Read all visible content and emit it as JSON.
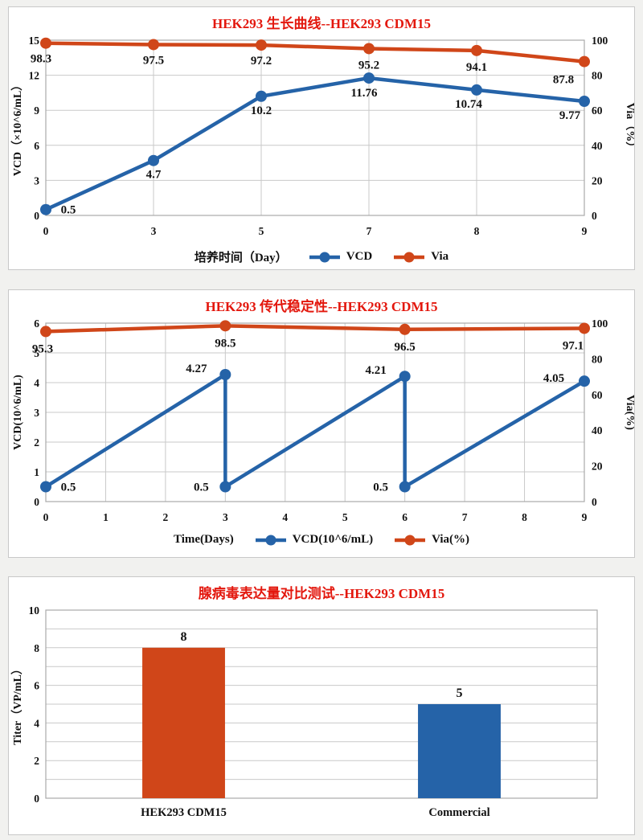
{
  "page": {
    "background": "#f1f1ef"
  },
  "colors": {
    "blue": "#2563a8",
    "orange": "#d04619",
    "title_red": "#e3170d",
    "grid": "#c9c9c9",
    "plot_border": "#a9a9a9",
    "text": "#111111",
    "panel_bg": "#ffffff"
  },
  "chart_data": [
    {
      "id": "growth-curve",
      "type": "line",
      "title": "HEK293 生长曲线--HEK293 CDM15",
      "x_mode": "category",
      "x_categories": [
        "0",
        "3",
        "5",
        "7",
        "8",
        "9"
      ],
      "xlabel": "培养时间（Day）",
      "left_axis": {
        "label": "VCD（×10^6/mL）",
        "min": 0,
        "max": 15,
        "ticks": [
          "0",
          "3",
          "6",
          "9",
          "12",
          "15"
        ]
      },
      "right_axis": {
        "label": "Via（%）",
        "min": 0,
        "max": 100,
        "ticks": [
          "0",
          "20",
          "40",
          "60",
          "80",
          "100"
        ]
      },
      "grid": true,
      "legend_position": "bottom",
      "series": [
        {
          "name": "VCD",
          "axis": "left",
          "color": "blue",
          "points": [
            {
              "x": 0,
              "y": 0.5,
              "label": "0.5",
              "dx": 28,
              "dy": 5
            },
            {
              "x": 1,
              "y": 4.7,
              "label": "4.7",
              "dx": 0,
              "dy": 22
            },
            {
              "x": 2,
              "y": 10.2,
              "label": "10.2",
              "dx": 0,
              "dy": 22
            },
            {
              "x": 3,
              "y": 11.76,
              "label": "11.76",
              "dx": -6,
              "dy": 23
            },
            {
              "x": 4,
              "y": 10.74,
              "label": "10.74",
              "dx": -10,
              "dy": 22
            },
            {
              "x": 5,
              "y": 9.77,
              "label": "9.77",
              "dx": -18,
              "dy": 22
            }
          ]
        },
        {
          "name": "Via",
          "axis": "right",
          "color": "orange",
          "points": [
            {
              "x": 0,
              "y": 98.3,
              "label": "98.3",
              "dx": -6,
              "dy": 24
            },
            {
              "x": 1,
              "y": 97.5,
              "label": "97.5",
              "dx": 0,
              "dy": 24
            },
            {
              "x": 2,
              "y": 97.2,
              "label": "97.2",
              "dx": 0,
              "dy": 24
            },
            {
              "x": 3,
              "y": 95.2,
              "label": "95.2",
              "dx": 0,
              "dy": 25
            },
            {
              "x": 4,
              "y": 94.1,
              "label": "94.1",
              "dx": 0,
              "dy": 25
            },
            {
              "x": 5,
              "y": 87.8,
              "label": "87.8",
              "dx": -26,
              "dy": 27
            }
          ]
        }
      ]
    },
    {
      "id": "passage-stability",
      "type": "line",
      "title": "HEK293 传代稳定性--HEK293 CDM15",
      "x_mode": "linear",
      "x_min": 0,
      "x_max": 9,
      "x_ticks": [
        "0",
        "1",
        "2",
        "3",
        "4",
        "5",
        "6",
        "7",
        "8",
        "9"
      ],
      "xlabel": "Time(Days)",
      "left_axis": {
        "label": "VCD(10^6/mL)",
        "min": 0,
        "max": 6,
        "ticks": [
          "0",
          "1",
          "2",
          "3",
          "4",
          "5",
          "6"
        ]
      },
      "right_axis": {
        "label": "Via(%)",
        "min": 0,
        "max": 100,
        "ticks": [
          "0",
          "20",
          "40",
          "60",
          "80",
          "100"
        ]
      },
      "grid": true,
      "legend_position": "bottom",
      "series": [
        {
          "name": "VCD(10^6/mL)",
          "axis": "left",
          "color": "blue",
          "points": [
            {
              "x": 0,
              "y": 0.5,
              "label": "0.5",
              "dx": 28,
              "dy": 5
            },
            {
              "x": 3,
              "y": 4.27,
              "label": "4.27",
              "dx": -36,
              "dy": -3
            },
            {
              "x": 3,
              "y": 0.5,
              "label": "0.5",
              "dx": -30,
              "dy": 5
            },
            {
              "x": 6,
              "y": 4.21,
              "label": "4.21",
              "dx": -36,
              "dy": -3
            },
            {
              "x": 6,
              "y": 0.5,
              "label": "0.5",
              "dx": -30,
              "dy": 5
            },
            {
              "x": 9,
              "y": 4.05,
              "label": "4.05",
              "dx": -38,
              "dy": 1
            }
          ]
        },
        {
          "name": "Via(%)",
          "axis": "right",
          "color": "orange",
          "points": [
            {
              "x": 0,
              "y": 95.3,
              "label": "95.3",
              "dx": -4,
              "dy": 26
            },
            {
              "x": 3,
              "y": 98.5,
              "label": "98.5",
              "dx": 0,
              "dy": 26
            },
            {
              "x": 6,
              "y": 96.5,
              "label": "96.5",
              "dx": 0,
              "dy": 26
            },
            {
              "x": 9,
              "y": 97.1,
              "label": "97.1",
              "dx": -14,
              "dy": 26
            }
          ]
        }
      ]
    },
    {
      "id": "titer-comparison",
      "type": "bar",
      "title": "腺病毒表达量对比测试--HEK293 CDM15",
      "categories": [
        "HEK293 CDM15",
        "Commercial"
      ],
      "values": [
        8,
        5
      ],
      "value_labels": [
        "8",
        "5"
      ],
      "bar_colors": [
        "orange",
        "blue"
      ],
      "ylabel": "Titer（VP/mL）",
      "ylim": [
        0,
        10
      ],
      "y_ticks": [
        "0",
        "2",
        "4",
        "6",
        "8",
        "10"
      ],
      "y_grid_interval": 1,
      "grid": true,
      "legend_position": "none"
    }
  ]
}
